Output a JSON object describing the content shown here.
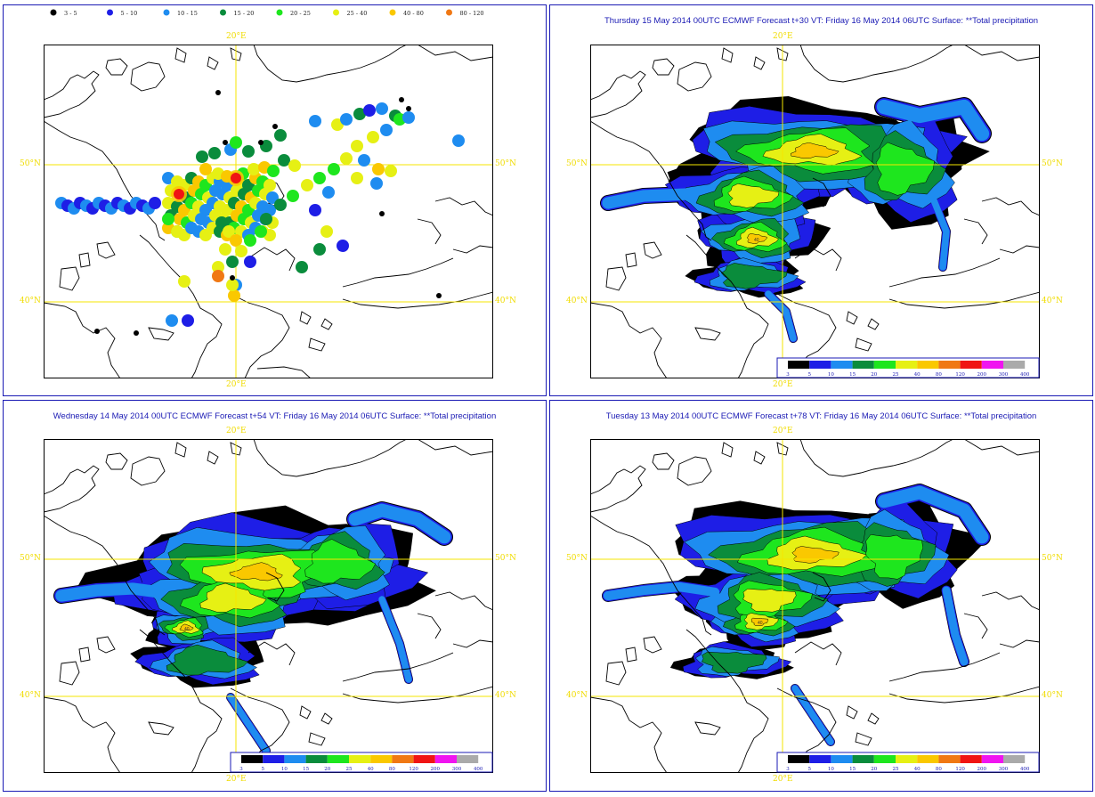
{
  "legend_obs": {
    "items": [
      {
        "label": "3 - 5",
        "color": "#000000"
      },
      {
        "label": "5 - 10",
        "color": "#1e1ee6"
      },
      {
        "label": "10 - 15",
        "color": "#1e8cf0"
      },
      {
        "label": "15 - 20",
        "color": "#0a8c3c"
      },
      {
        "label": "20 - 25",
        "color": "#1ee61e"
      },
      {
        "label": "25 - 40",
        "color": "#e6f014"
      },
      {
        "label": "40 - 80",
        "color": "#fac800"
      },
      {
        "label": "80 - 120",
        "color": "#f07814"
      }
    ]
  },
  "colorbar": {
    "labels": [
      "3",
      "5",
      "10",
      "15",
      "20",
      "25",
      "40",
      "80",
      "120",
      "200",
      "300",
      "400"
    ],
    "colors": [
      "#000000",
      "#1e1ee6",
      "#1e8cf0",
      "#0a8c3c",
      "#1ee61e",
      "#e6f014",
      "#fac800",
      "#f07814",
      "#f01414",
      "#f014f0",
      "#aaaaaa"
    ]
  },
  "axes": {
    "lon_label": "20°E",
    "lat50": "50°N",
    "lat40": "40°N",
    "contour_label": "40"
  },
  "panels": [
    {
      "id": "obs",
      "title": ""
    },
    {
      "id": "t30",
      "title": "Thursday 15 May 2014 00UTC ECMWF  Forecast t+30 VT: Friday 16 May 2014 06UTC Surface: **Total precipitation"
    },
    {
      "id": "t54",
      "title": "Wednesday 14 May 2014 00UTC ECMWF  Forecast t+54 VT: Friday 16 May 2014 06UTC Surface: **Total precipitation"
    },
    {
      "id": "t78",
      "title": "Tuesday 13 May 2014 00UTC ECMWF  Forecast t+78 VT: Friday 16 May 2014 06UTC Surface: **Total precipitation"
    }
  ]
}
